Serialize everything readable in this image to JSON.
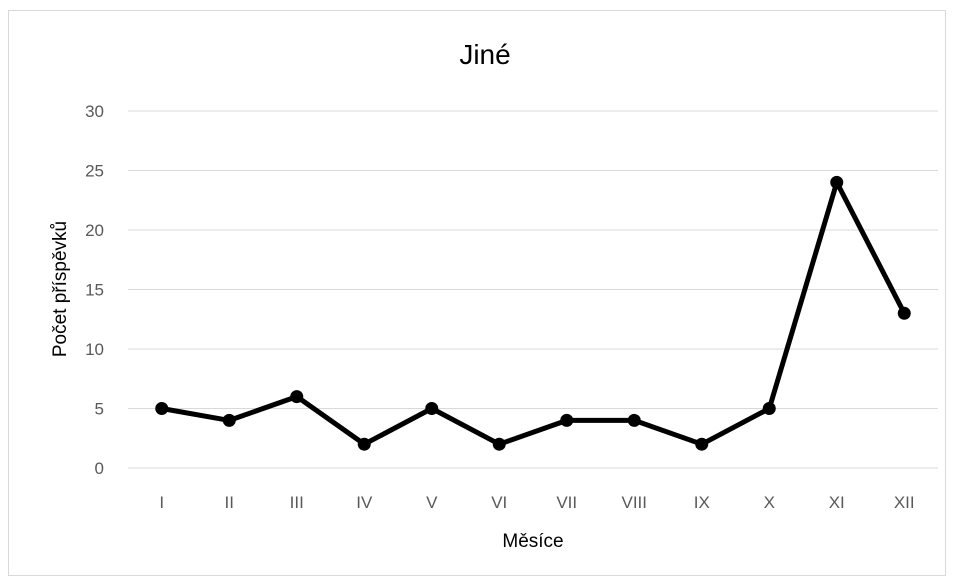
{
  "chart_data": {
    "type": "line",
    "title": "Jiné",
    "xlabel": "Měsíce",
    "ylabel": "Počet příspěvků",
    "categories": [
      "I",
      "II",
      "III",
      "IV",
      "V",
      "VI",
      "VII",
      "VIII",
      "IX",
      "X",
      "XI",
      "XII"
    ],
    "series": [
      {
        "values": [
          5,
          4,
          6,
          2,
          5,
          2,
          4,
          4,
          2,
          5,
          24,
          13
        ]
      }
    ],
    "ylim": [
      0,
      30
    ],
    "yticks": [
      0,
      5,
      10,
      15,
      20,
      25,
      30
    ],
    "grid": true,
    "legend": "none",
    "line_color": "#000000",
    "gridline_color": "#d9d9d9"
  }
}
